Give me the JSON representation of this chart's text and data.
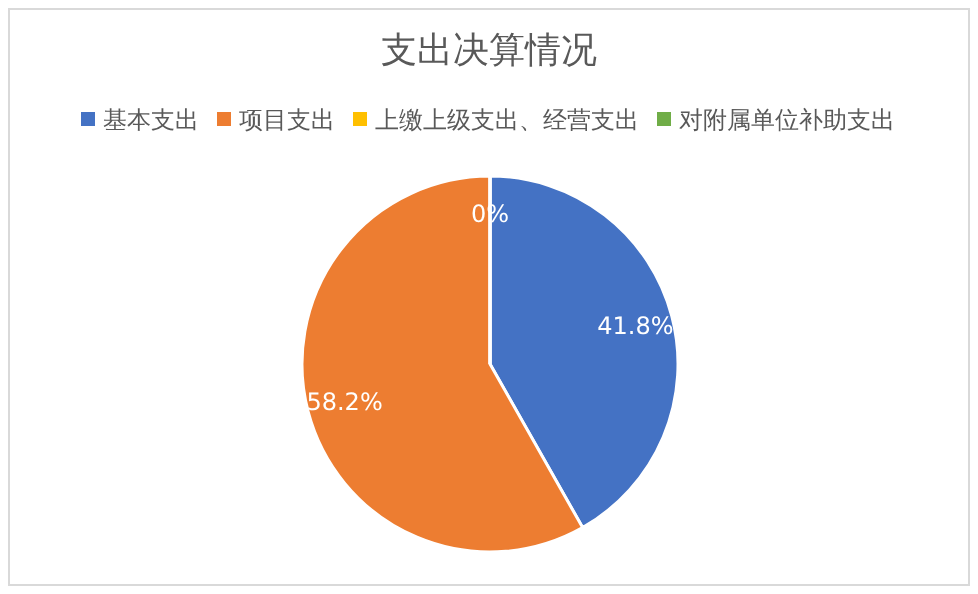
{
  "chart_data": {
    "type": "pie",
    "title": "支出决算情况",
    "categories": [
      "基本支出",
      "项目支出",
      "上缴上级支出、经营支出",
      "对附属单位补助支出"
    ],
    "values": [
      41.8,
      58.2,
      0,
      0
    ],
    "colors": [
      "#4472c4",
      "#ed7d31",
      "#ffc000",
      "#70ad47"
    ],
    "value_labels": [
      "41.8%",
      "58.2%",
      "0%",
      null
    ],
    "legend": "top"
  }
}
